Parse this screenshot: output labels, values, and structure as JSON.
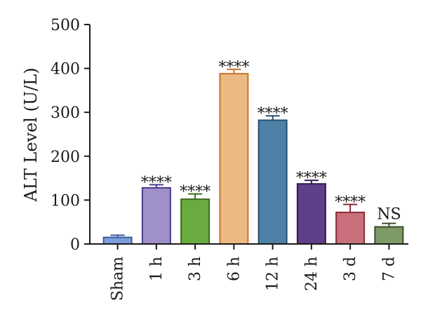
{
  "chart_data": {
    "type": "bar",
    "ylabel": "ALT Level (U/L)",
    "ylim": [
      0,
      500
    ],
    "yticks": [
      0,
      100,
      200,
      300,
      400,
      500
    ],
    "categories": [
      "Sham",
      "1 h",
      "3 h",
      "6 h",
      "12 h",
      "24 h",
      "3 d",
      "7 d"
    ],
    "values": [
      15,
      128,
      102,
      388,
      282,
      137,
      72,
      39
    ],
    "errors": [
      5,
      7,
      12,
      10,
      10,
      8,
      18,
      8
    ],
    "significance": [
      "",
      "****",
      "****",
      "****",
      "****",
      "****",
      "****",
      "NS"
    ],
    "colors": [
      {
        "fill": "#7b9fd6",
        "stroke": "#3d5a9e"
      },
      {
        "fill": "#9f90c8",
        "stroke": "#4a3a8c"
      },
      {
        "fill": "#6aab3f",
        "stroke": "#3d6a1f"
      },
      {
        "fill": "#ebba82",
        "stroke": "#c7742a"
      },
      {
        "fill": "#4f80a6",
        "stroke": "#26506f"
      },
      {
        "fill": "#5e3f8a",
        "stroke": "#2e1a52"
      },
      {
        "fill": "#c7707b",
        "stroke": "#8c2a35"
      },
      {
        "fill": "#7e9a67",
        "stroke": "#3b4d2d"
      }
    ]
  }
}
